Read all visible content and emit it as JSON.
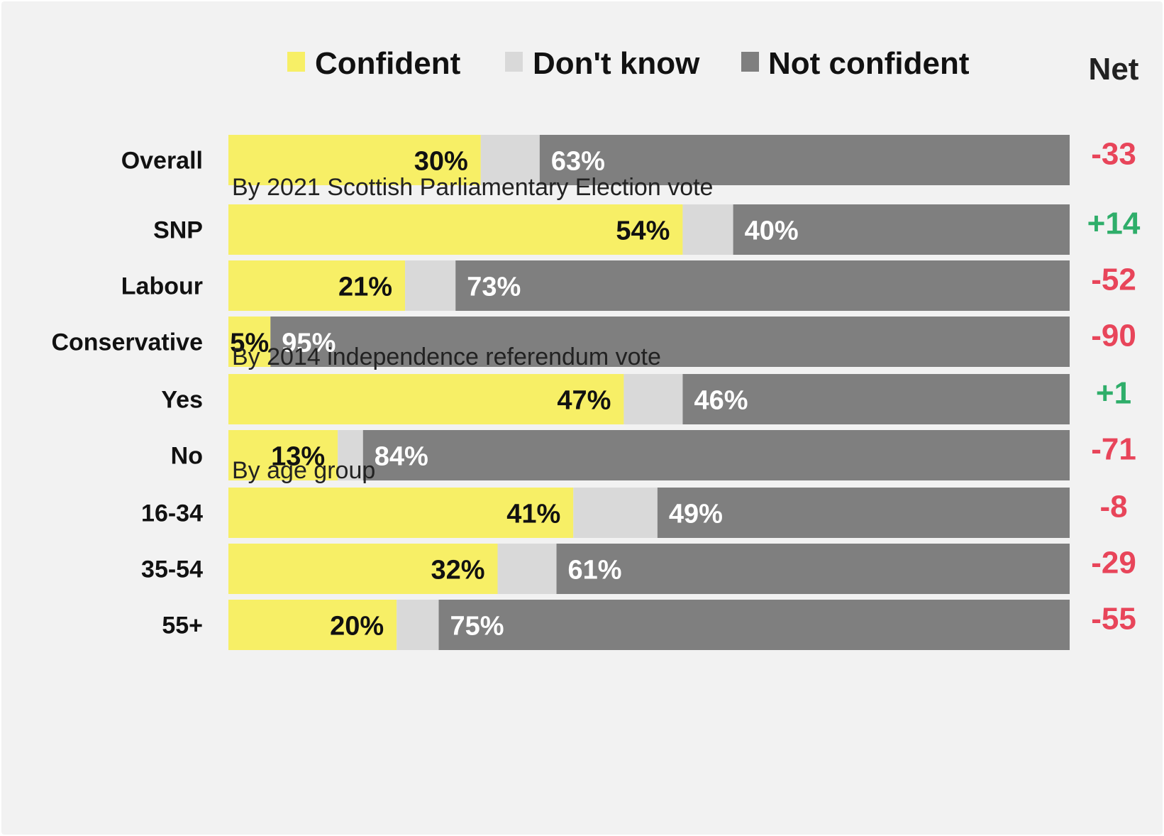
{
  "colors": {
    "confident": "#f7ef66",
    "dont_know": "#d9d9d9",
    "not_confident": "#7f7f7f",
    "net_positive": "#2fae6a",
    "net_negative": "#e8455a"
  },
  "legend": {
    "confident": "Confident",
    "dont_know": "Don't know",
    "not_confident": "Not confident",
    "net": "Net"
  },
  "chart_data": {
    "type": "bar",
    "stacked": true,
    "orientation": "horizontal",
    "series": [
      {
        "name": "Confident",
        "values": [
          30,
          54,
          21,
          5,
          47,
          13,
          41,
          32,
          20
        ]
      },
      {
        "name": "Don't know",
        "values": [
          7,
          6,
          6,
          0,
          7,
          3,
          10,
          7,
          5
        ]
      },
      {
        "name": "Not confident",
        "values": [
          63,
          40,
          73,
          95,
          46,
          84,
          49,
          61,
          75
        ]
      }
    ],
    "groups": [
      {
        "title": "",
        "rows": [
          {
            "label": "Overall",
            "confident": 30,
            "dont_know": 7,
            "not_confident": 63,
            "net": "-33"
          }
        ]
      },
      {
        "title": "By 2021 Scottish Parliamentary Election vote",
        "rows": [
          {
            "label": "SNP",
            "confident": 54,
            "dont_know": 6,
            "not_confident": 40,
            "net": "+14"
          },
          {
            "label": "Labour",
            "confident": 21,
            "dont_know": 6,
            "not_confident": 73,
            "net": "-52"
          },
          {
            "label": "Conservative",
            "confident": 5,
            "dont_know": 0,
            "not_confident": 95,
            "net": "-90"
          }
        ]
      },
      {
        "title": "By 2014 independence referendum vote",
        "rows": [
          {
            "label": "Yes",
            "confident": 47,
            "dont_know": 7,
            "not_confident": 46,
            "net": "+1"
          },
          {
            "label": "No",
            "confident": 13,
            "dont_know": 3,
            "not_confident": 84,
            "net": "-71"
          }
        ]
      },
      {
        "title": "By age group",
        "rows": [
          {
            "label": "16-34",
            "confident": 41,
            "dont_know": 10,
            "not_confident": 49,
            "net": "-8"
          },
          {
            "label": "35-54",
            "confident": 32,
            "dont_know": 7,
            "not_confident": 61,
            "net": "-29"
          },
          {
            "label": "55+",
            "confident": 20,
            "dont_know": 5,
            "not_confident": 75,
            "net": "-55"
          }
        ]
      }
    ],
    "value_format": "{v}%",
    "xlim": [
      0,
      100
    ]
  }
}
